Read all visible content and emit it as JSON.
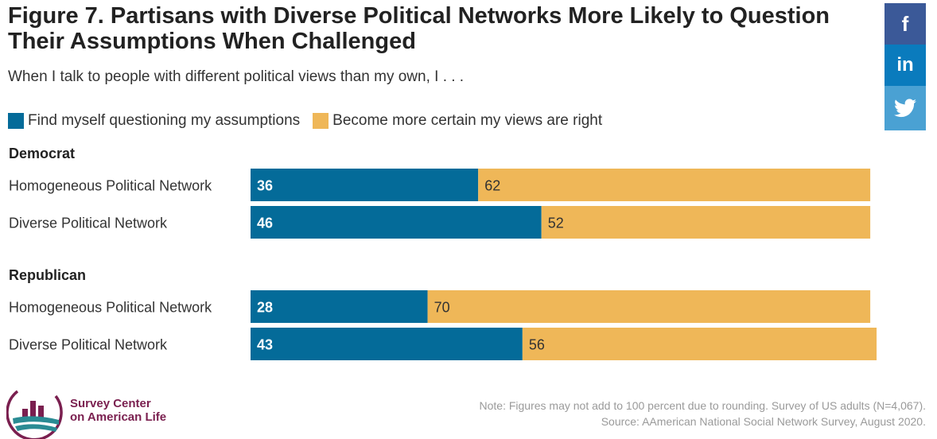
{
  "header": {
    "title": "Figure 7. Partisans with Diverse Political Networks More Likely to Question Their Assumptions When Challenged",
    "subtitle": "When I talk to people with different political views than my own, I . . ."
  },
  "social": [
    {
      "name": "facebook",
      "label": "f",
      "color": "#3b5998",
      "icon": "facebook-icon"
    },
    {
      "name": "linkedin",
      "label": "in",
      "color": "#0a7bbd",
      "icon": "linkedin-icon"
    },
    {
      "name": "twitter",
      "label": "",
      "color": "#4aa1d3",
      "icon": "twitter-bird-icon"
    }
  ],
  "chart_data": {
    "type": "bar",
    "orientation": "horizontal",
    "stacked": true,
    "series": [
      {
        "name": "Find myself questioning my assumptions",
        "color": "#046b99"
      },
      {
        "name": "Become more certain my views are right",
        "color": "#efb758"
      }
    ],
    "groups": [
      {
        "name": "Democrat",
        "rows": [
          {
            "label": "Homogeneous Political Network",
            "values": [
              36,
              62
            ]
          },
          {
            "label": "Diverse Political Network",
            "values": [
              46,
              52
            ]
          }
        ]
      },
      {
        "name": "Republican",
        "rows": [
          {
            "label": "Homogeneous Political Network",
            "values": [
              28,
              70
            ]
          },
          {
            "label": "Diverse Political Network",
            "values": [
              43,
              56
            ]
          }
        ]
      }
    ],
    "xlim": [
      0,
      100
    ],
    "grid": false,
    "legend_position": "top-left"
  },
  "logo": {
    "line1": "Survey Center",
    "line2": "on American Life"
  },
  "footer": {
    "note": "Note: Figures may not add to 100 percent due to rounding. Survey of US adults (N=4,067).",
    "source": "Source: AAmerican National Social Network Survey, August 2020."
  }
}
